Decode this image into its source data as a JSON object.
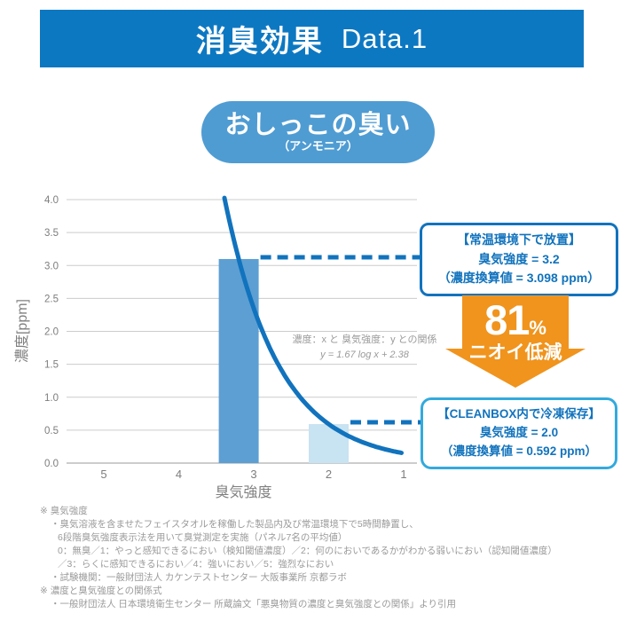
{
  "header": {
    "title": "消臭効果",
    "data_label": "Data.1"
  },
  "subject_badge": {
    "title": "おしっこの臭い",
    "subtitle": "（アンモニア）"
  },
  "chart_data": {
    "type": "bar+line",
    "xlabel": "臭気強度",
    "ylabel": "濃度[ppm]",
    "x_ticks": [
      "5",
      "4",
      "3",
      "2",
      "1"
    ],
    "x_axis_reversed": true,
    "ylim": [
      0.0,
      4.0
    ],
    "ytick_step": 0.5,
    "grid": true,
    "bars": [
      {
        "name": "room-temp",
        "odor_intensity": 3.2,
        "ppm": 3.098,
        "color": "#5d9fd3",
        "label": "常温環境下で放置"
      },
      {
        "name": "cleanbox",
        "odor_intensity": 2.0,
        "ppm": 0.592,
        "color": "#c8e3f2",
        "label": "CLEANBOX内で冷凍保存"
      }
    ],
    "curve": {
      "relation_label": "濃度：x と 臭気強度：y との関係",
      "formula": "y = 1.67 log x + 2.38",
      "slope": 1.67,
      "intercept": 2.38,
      "intensity_start": 3.39,
      "intensity_end": 1.02
    },
    "reference_lines": [
      {
        "ppm": 3.098,
        "from_intensity": 3.2,
        "style": "dashed"
      },
      {
        "ppm": 0.592,
        "from_intensity": 2.0,
        "style": "dashed"
      }
    ]
  },
  "annotations": {
    "room_temp": {
      "title": "【常温環境下で放置】",
      "intensity": "臭気強度 = 3.2",
      "ppm": "（濃度換算値 = 3.098 ppm）"
    },
    "cleanbox": {
      "title": "【CLEANBOX内で冷凍保存】",
      "intensity": "臭気強度 = 2.0",
      "ppm": "（濃度換算値 = 0.592 ppm）"
    },
    "reduction": {
      "percent": "81",
      "percent_sign": "%",
      "label": "ニオイ低減"
    }
  },
  "footnotes": [
    "※ 臭気強度",
    "・臭気溶液を含ませたフェイスタオルを稼働した製品内及び常温環境下で5時間静置し、",
    "6段階臭気強度表示法を用いて臭覚測定を実施（パネル7名の平均値）",
    "0：無臭／1：やっと感知できるにおい（検知閾値濃度）／2：何のにおいであるかがわかる弱いにおい（認知閾値濃度）",
    "／3：らくに感知できるにおい／4：強いにおい／5：強烈なにおい",
    "・試験機関：一般財団法人 カケンテストセンター 大阪事業所 京都ラボ",
    "※ 濃度と臭気強度との関係式",
    "・一般財団法人 日本環境衛生センター 所蔵論文「悪臭物質の濃度と臭気強度との関係」より引用"
  ],
  "colors": {
    "header_bg": "#0d78c2",
    "badge_bg": "#4f9cd3",
    "primary_blue": "#1173bd",
    "bar_dark": "#5d9fd3",
    "bar_light": "#c8e3f2",
    "cleanbox_border": "#33aadd",
    "arrow_orange": "#f0941d",
    "grid_gray": "#cccccc",
    "axis_gray": "#9a9a9a",
    "label_gray": "#808080"
  }
}
